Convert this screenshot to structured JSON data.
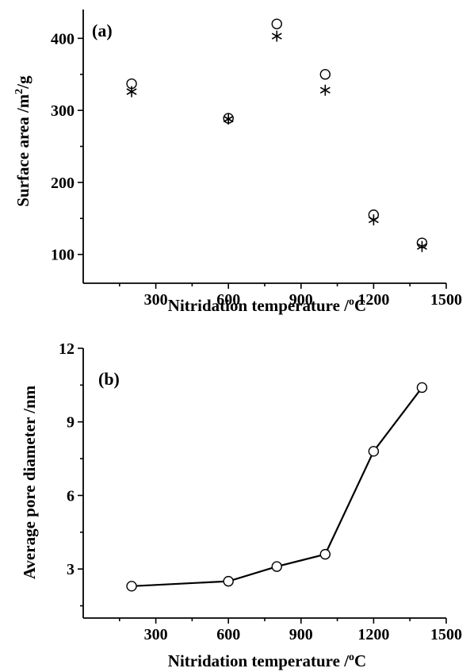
{
  "chart_data": [
    {
      "type": "scatter",
      "panel_label": "(a)",
      "xlabel": "Nitridation temperature /",
      "xlabel_sup": "o",
      "xlabel_suffix": "C",
      "ylabel": "Surface area /m",
      "ylabel_sup": "2",
      "ylabel_suffix": "/g",
      "xlim": [
        0,
        1500
      ],
      "ylim": [
        60,
        440
      ],
      "xticks": [
        300,
        600,
        900,
        1200,
        1500
      ],
      "yticks": [
        100,
        200,
        300,
        400
      ],
      "series": [
        {
          "marker": "circle",
          "x": [
            200,
            600,
            800,
            1000,
            1200,
            1400
          ],
          "y": [
            337,
            289,
            420,
            350,
            155,
            116
          ]
        },
        {
          "marker": "star",
          "x": [
            200,
            600,
            800,
            1000,
            1200,
            1400
          ],
          "y": [
            326,
            288,
            403,
            328,
            148,
            111
          ]
        }
      ]
    },
    {
      "type": "line",
      "panel_label": "(b)",
      "xlabel": "Nitridation temperature /",
      "xlabel_sup": "o",
      "xlabel_suffix": "C",
      "ylabel": "Average pore diameter /nm",
      "xlim": [
        0,
        1500
      ],
      "ylim": [
        1,
        12
      ],
      "xticks": [
        300,
        600,
        900,
        1200,
        1500
      ],
      "yticks": [
        3,
        6,
        9,
        12
      ],
      "series": [
        {
          "marker": "circle",
          "x": [
            200,
            600,
            800,
            1000,
            1200,
            1400
          ],
          "y": [
            2.3,
            2.5,
            3.1,
            3.6,
            7.8,
            10.4
          ]
        }
      ]
    }
  ]
}
